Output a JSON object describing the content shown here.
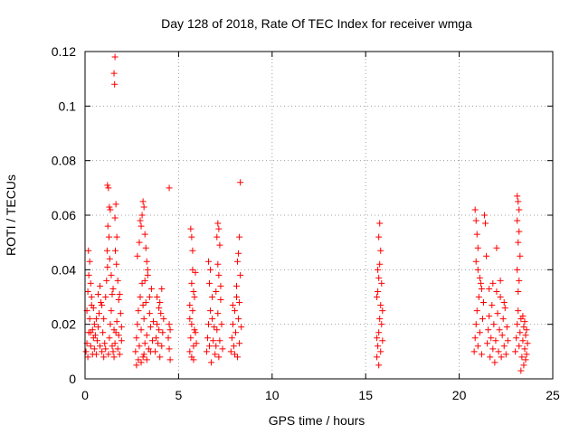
{
  "chart_data": {
    "type": "scatter",
    "title": "Day 128 of 2018, Rate Of TEC Index for receiver wmga",
    "xlabel": "GPS time / hours",
    "ylabel": "ROTI / TECUs",
    "xlim": [
      0,
      25
    ],
    "ylim": [
      0,
      0.12
    ],
    "xticks": [
      0,
      5,
      10,
      15,
      20,
      25
    ],
    "xtick_labels": [
      "0",
      "5",
      "10",
      "15",
      "20",
      "25"
    ],
    "yticks": [
      0,
      0.02,
      0.04,
      0.06,
      0.08,
      0.1,
      0.12
    ],
    "ytick_labels": [
      "0",
      "0.02",
      "0.04",
      "0.06",
      "0.08",
      "0.1",
      "0.12"
    ],
    "grid": true,
    "legend": false,
    "marker": "plus",
    "color": "#ff0000",
    "series": [
      {
        "points": [
          [
            0.05,
            0.01
          ],
          [
            0.1,
            0.013
          ],
          [
            0.15,
            0.008
          ],
          [
            0.2,
            0.017
          ],
          [
            0.25,
            0.022
          ],
          [
            0.3,
            0.012
          ],
          [
            0.35,
            0.027
          ],
          [
            0.4,
            0.009
          ],
          [
            0.45,
            0.015
          ],
          [
            0.5,
            0.02
          ],
          [
            0.15,
            0.032
          ],
          [
            0.2,
            0.038
          ],
          [
            0.25,
            0.043
          ],
          [
            0.18,
            0.047
          ],
          [
            0.3,
            0.035
          ],
          [
            0.35,
            0.03
          ],
          [
            0.1,
            0.025
          ],
          [
            0.4,
            0.018
          ],
          [
            0.5,
            0.011
          ],
          [
            0.55,
            0.016
          ],
          [
            0.6,
            0.009
          ],
          [
            0.65,
            0.014
          ],
          [
            0.7,
            0.019
          ],
          [
            0.75,
            0.024
          ],
          [
            0.8,
            0.012
          ],
          [
            0.85,
            0.028
          ],
          [
            0.9,
            0.01
          ],
          [
            0.95,
            0.017
          ],
          [
            1.0,
            0.022
          ],
          [
            1.05,
            0.013
          ],
          [
            1.1,
            0.03
          ],
          [
            1.15,
            0.036
          ],
          [
            1.2,
            0.041
          ],
          [
            1.25,
            0.009
          ],
          [
            1.3,
            0.015
          ],
          [
            1.35,
            0.02
          ],
          [
            1.4,
            0.025
          ],
          [
            1.45,
            0.012
          ],
          [
            1.5,
            0.033
          ],
          [
            1.55,
            0.018
          ],
          [
            1.2,
            0.071
          ],
          [
            1.25,
            0.07
          ],
          [
            1.3,
            0.063
          ],
          [
            1.35,
            0.062
          ],
          [
            1.22,
            0.056
          ],
          [
            1.28,
            0.052
          ],
          [
            1.18,
            0.047
          ],
          [
            1.32,
            0.044
          ],
          [
            1.4,
            0.038
          ],
          [
            1.45,
            0.031
          ],
          [
            1.6,
            0.118
          ],
          [
            1.55,
            0.112
          ],
          [
            1.58,
            0.108
          ],
          [
            1.65,
            0.064
          ],
          [
            1.6,
            0.059
          ],
          [
            1.7,
            0.052
          ],
          [
            1.62,
            0.047
          ],
          [
            1.68,
            0.042
          ],
          [
            1.75,
            0.036
          ],
          [
            1.8,
            0.029
          ],
          [
            1.5,
            0.01
          ],
          [
            1.55,
            0.008
          ],
          [
            1.6,
            0.013
          ],
          [
            1.65,
            0.017
          ],
          [
            1.7,
            0.021
          ],
          [
            1.75,
            0.011
          ],
          [
            1.8,
            0.016
          ],
          [
            1.85,
            0.009
          ],
          [
            1.9,
            0.024
          ],
          [
            1.95,
            0.014
          ],
          [
            1.0,
            0.008
          ],
          [
            1.1,
            0.011
          ],
          [
            0.7,
            0.031
          ],
          [
            0.8,
            0.034
          ],
          [
            0.9,
            0.027
          ],
          [
            0.6,
            0.022
          ],
          [
            0.3,
            0.017
          ],
          [
            0.45,
            0.026
          ],
          [
            1.85,
            0.031
          ],
          [
            1.95,
            0.019
          ],
          [
            2.7,
            0.01
          ],
          [
            2.75,
            0.015
          ],
          [
            2.8,
            0.02
          ],
          [
            2.85,
            0.025
          ],
          [
            2.9,
            0.012
          ],
          [
            2.95,
            0.03
          ],
          [
            3.0,
            0.018
          ],
          [
            3.05,
            0.035
          ],
          [
            3.1,
            0.008
          ],
          [
            3.15,
            0.022
          ],
          [
            3.2,
            0.013
          ],
          [
            3.25,
            0.028
          ],
          [
            3.3,
            0.016
          ],
          [
            3.35,
            0.04
          ],
          [
            3.4,
            0.011
          ],
          [
            3.45,
            0.024
          ],
          [
            3.5,
            0.019
          ],
          [
            3.55,
            0.033
          ],
          [
            2.8,
            0.045
          ],
          [
            2.9,
            0.05
          ],
          [
            3.0,
            0.056
          ],
          [
            3.05,
            0.06
          ],
          [
            3.1,
            0.065
          ],
          [
            3.15,
            0.063
          ],
          [
            2.95,
            0.058
          ],
          [
            3.2,
            0.053
          ],
          [
            3.25,
            0.048
          ],
          [
            3.3,
            0.043
          ],
          [
            3.35,
            0.038
          ],
          [
            3.45,
            0.03
          ],
          [
            2.75,
            0.005
          ],
          [
            2.85,
            0.007
          ],
          [
            3.0,
            0.006
          ],
          [
            3.15,
            0.009
          ],
          [
            3.3,
            0.007
          ],
          [
            3.5,
            0.01
          ],
          [
            3.6,
            0.014
          ],
          [
            3.65,
            0.021
          ],
          [
            3.1,
            0.027
          ],
          [
            3.2,
            0.036
          ],
          [
            3.75,
            0.01
          ],
          [
            3.8,
            0.015
          ],
          [
            3.85,
            0.02
          ],
          [
            3.9,
            0.013
          ],
          [
            3.95,
            0.018
          ],
          [
            4.0,
            0.008
          ],
          [
            4.05,
            0.024
          ],
          [
            4.1,
            0.012
          ],
          [
            4.15,
            0.017
          ],
          [
            4.2,
            0.022
          ],
          [
            4.5,
            0.07
          ],
          [
            4.45,
            0.015
          ],
          [
            4.5,
            0.011
          ],
          [
            4.55,
            0.007
          ],
          [
            4.5,
            0.02
          ],
          [
            4.55,
            0.018
          ],
          [
            3.85,
            0.03
          ],
          [
            4.0,
            0.028
          ],
          [
            4.1,
            0.033
          ],
          [
            3.95,
            0.026
          ],
          [
            5.6,
            0.01
          ],
          [
            5.65,
            0.015
          ],
          [
            5.7,
            0.02
          ],
          [
            5.75,
            0.025
          ],
          [
            5.8,
            0.012
          ],
          [
            5.85,
            0.03
          ],
          [
            5.9,
            0.017
          ],
          [
            5.7,
            0.035
          ],
          [
            5.75,
            0.04
          ],
          [
            5.8,
            0.007
          ],
          [
            5.65,
            0.055
          ],
          [
            5.7,
            0.052
          ],
          [
            5.75,
            0.047
          ],
          [
            5.6,
            0.022
          ],
          [
            5.85,
            0.018
          ],
          [
            5.95,
            0.013
          ],
          [
            5.9,
            0.039
          ],
          [
            5.6,
            0.027
          ],
          [
            5.8,
            0.032
          ],
          [
            5.7,
            0.008
          ],
          [
            6.5,
            0.01
          ],
          [
            6.55,
            0.015
          ],
          [
            6.6,
            0.02
          ],
          [
            6.65,
            0.012
          ],
          [
            6.7,
            0.025
          ],
          [
            6.75,
            0.006
          ],
          [
            6.8,
            0.03
          ],
          [
            6.85,
            0.014
          ],
          [
            6.9,
            0.019
          ],
          [
            6.95,
            0.009
          ],
          [
            6.6,
            0.043
          ],
          [
            6.7,
            0.04
          ],
          [
            6.65,
            0.035
          ],
          [
            6.8,
            0.022
          ],
          [
            7.0,
            0.012
          ],
          [
            7.05,
            0.018
          ],
          [
            7.1,
            0.024
          ],
          [
            7.15,
            0.008
          ],
          [
            7.2,
            0.014
          ],
          [
            7.25,
            0.029
          ],
          [
            7.1,
            0.057
          ],
          [
            7.15,
            0.055
          ],
          [
            7.05,
            0.052
          ],
          [
            7.2,
            0.049
          ],
          [
            7.1,
            0.042
          ],
          [
            7.15,
            0.038
          ],
          [
            7.25,
            0.034
          ],
          [
            7.3,
            0.02
          ],
          [
            7.35,
            0.011
          ],
          [
            7.0,
            0.032
          ],
          [
            7.8,
            0.01
          ],
          [
            7.85,
            0.015
          ],
          [
            7.9,
            0.02
          ],
          [
            7.95,
            0.012
          ],
          [
            8.0,
            0.025
          ],
          [
            8.05,
            0.017
          ],
          [
            8.1,
            0.03
          ],
          [
            8.15,
            0.008
          ],
          [
            8.2,
            0.022
          ],
          [
            8.25,
            0.013
          ],
          [
            8.3,
            0.072
          ],
          [
            8.25,
            0.052
          ],
          [
            8.2,
            0.046
          ],
          [
            8.15,
            0.043
          ],
          [
            8.3,
            0.038
          ],
          [
            8.1,
            0.034
          ],
          [
            8.25,
            0.028
          ],
          [
            8.35,
            0.019
          ],
          [
            8.0,
            0.009
          ],
          [
            7.9,
            0.027
          ],
          [
            15.6,
            0.008
          ],
          [
            15.65,
            0.012
          ],
          [
            15.7,
            0.017
          ],
          [
            15.75,
            0.022
          ],
          [
            15.8,
            0.027
          ],
          [
            15.65,
            0.032
          ],
          [
            15.7,
            0.037
          ],
          [
            15.75,
            0.042
          ],
          [
            15.8,
            0.047
          ],
          [
            15.7,
            0.052
          ],
          [
            15.75,
            0.057
          ],
          [
            15.6,
            0.015
          ],
          [
            15.85,
            0.02
          ],
          [
            15.9,
            0.025
          ],
          [
            15.6,
            0.03
          ],
          [
            15.85,
            0.035
          ],
          [
            15.65,
            0.04
          ],
          [
            15.8,
            0.01
          ],
          [
            15.7,
            0.005
          ],
          [
            15.9,
            0.014
          ],
          [
            20.8,
            0.01
          ],
          [
            20.85,
            0.015
          ],
          [
            20.9,
            0.02
          ],
          [
            20.95,
            0.025
          ],
          [
            21.0,
            0.012
          ],
          [
            21.05,
            0.03
          ],
          [
            21.1,
            0.017
          ],
          [
            21.15,
            0.035
          ],
          [
            21.2,
            0.009
          ],
          [
            21.25,
            0.022
          ],
          [
            20.85,
            0.062
          ],
          [
            20.9,
            0.058
          ],
          [
            20.95,
            0.053
          ],
          [
            21.0,
            0.048
          ],
          [
            20.9,
            0.043
          ],
          [
            21.0,
            0.04
          ],
          [
            21.1,
            0.037
          ],
          [
            21.2,
            0.033
          ],
          [
            21.3,
            0.028
          ],
          [
            21.35,
            0.06
          ],
          [
            21.4,
            0.057
          ],
          [
            21.45,
            0.045
          ],
          [
            21.5,
            0.013
          ],
          [
            21.55,
            0.018
          ],
          [
            21.6,
            0.023
          ],
          [
            21.65,
            0.008
          ],
          [
            21.7,
            0.015
          ],
          [
            21.75,
            0.027
          ],
          [
            21.8,
            0.011
          ],
          [
            21.85,
            0.02
          ],
          [
            21.9,
            0.006
          ],
          [
            21.95,
            0.014
          ],
          [
            22.0,
            0.048
          ],
          [
            22.05,
            0.024
          ],
          [
            22.1,
            0.01
          ],
          [
            22.15,
            0.018
          ],
          [
            22.2,
            0.03
          ],
          [
            22.25,
            0.008
          ],
          [
            22.3,
            0.016
          ],
          [
            22.35,
            0.022
          ],
          [
            22.4,
            0.012
          ],
          [
            22.45,
            0.026
          ],
          [
            22.5,
            0.009
          ],
          [
            22.55,
            0.019
          ],
          [
            22.6,
            0.014
          ],
          [
            21.6,
            0.033
          ],
          [
            21.8,
            0.035
          ],
          [
            22.0,
            0.032
          ],
          [
            22.2,
            0.036
          ],
          [
            22.4,
            0.028
          ],
          [
            23.1,
            0.067
          ],
          [
            23.15,
            0.065
          ],
          [
            23.2,
            0.062
          ],
          [
            23.1,
            0.058
          ],
          [
            23.2,
            0.054
          ],
          [
            23.15,
            0.05
          ],
          [
            23.25,
            0.045
          ],
          [
            23.1,
            0.04
          ],
          [
            23.2,
            0.036
          ],
          [
            23.15,
            0.032
          ],
          [
            23.0,
            0.01
          ],
          [
            23.05,
            0.015
          ],
          [
            23.1,
            0.02
          ],
          [
            23.15,
            0.025
          ],
          [
            23.2,
            0.012
          ],
          [
            23.25,
            0.017
          ],
          [
            23.3,
            0.022
          ],
          [
            23.35,
            0.008
          ],
          [
            23.4,
            0.014
          ],
          [
            23.45,
            0.019
          ],
          [
            23.5,
            0.011
          ],
          [
            23.55,
            0.016
          ],
          [
            23.6,
            0.009
          ],
          [
            23.65,
            0.013
          ],
          [
            23.45,
            0.005
          ],
          [
            23.3,
            0.003
          ],
          [
            23.5,
            0.021
          ],
          [
            23.6,
            0.018
          ],
          [
            23.4,
            0.023
          ],
          [
            23.55,
            0.007
          ]
        ]
      }
    ]
  }
}
